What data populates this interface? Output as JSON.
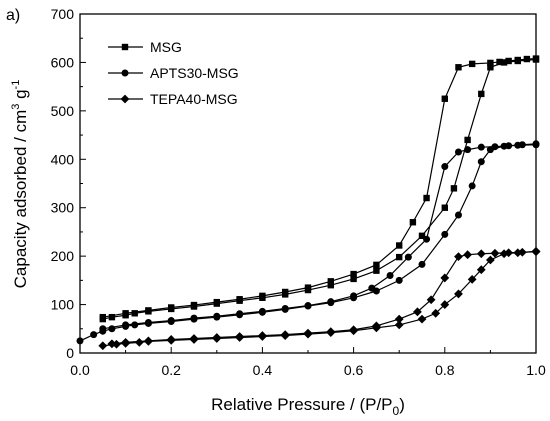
{
  "panel_label": "a)",
  "chart_data": {
    "type": "line",
    "xlabel": "Relative Pressure / (P/P",
    "xlabel_sub": "0",
    "xlabel_close": ")",
    "ylabel": "Capacity adsorbed / cm",
    "ylabel_sup": "3",
    "ylabel_mid": " g",
    "ylabel_sup2": "-1",
    "xlim": [
      0.0,
      1.0
    ],
    "ylim": [
      0,
      700
    ],
    "xticks": [
      "0.0",
      "0.2",
      "0.4",
      "0.6",
      "0.8",
      "1.0"
    ],
    "xtick_values": [
      0.0,
      0.2,
      0.4,
      0.6,
      0.8,
      1.0
    ],
    "yticks": [
      "0",
      "100",
      "200",
      "300",
      "400",
      "500",
      "600",
      "700"
    ],
    "ytick_values": [
      0,
      100,
      200,
      300,
      400,
      500,
      600,
      700
    ],
    "grid": false,
    "legend_position": "top-left",
    "series": [
      {
        "name": "MSG",
        "marker": "square",
        "adsorption": [
          [
            0.05,
            70
          ],
          [
            0.07,
            74
          ],
          [
            0.1,
            78
          ],
          [
            0.12,
            82
          ],
          [
            0.15,
            86
          ],
          [
            0.2,
            91
          ],
          [
            0.25,
            96
          ],
          [
            0.3,
            102
          ],
          [
            0.35,
            108
          ],
          [
            0.4,
            114
          ],
          [
            0.45,
            121
          ],
          [
            0.5,
            130
          ],
          [
            0.55,
            140
          ],
          [
            0.6,
            153
          ],
          [
            0.65,
            170
          ],
          [
            0.7,
            198
          ],
          [
            0.75,
            242
          ],
          [
            0.8,
            300
          ],
          [
            0.82,
            340
          ],
          [
            0.85,
            440
          ],
          [
            0.88,
            535
          ],
          [
            0.9,
            590
          ],
          [
            0.93,
            600
          ],
          [
            0.96,
            603
          ],
          [
            1.0,
            606
          ]
        ],
        "desorption": [
          [
            1.0,
            608
          ],
          [
            0.98,
            607
          ],
          [
            0.96,
            605
          ],
          [
            0.94,
            603
          ],
          [
            0.92,
            601
          ],
          [
            0.9,
            599
          ],
          [
            0.86,
            597
          ],
          [
            0.83,
            590
          ],
          [
            0.8,
            525
          ],
          [
            0.76,
            320
          ],
          [
            0.73,
            270
          ],
          [
            0.7,
            222
          ],
          [
            0.65,
            182
          ],
          [
            0.6,
            163
          ],
          [
            0.55,
            148
          ],
          [
            0.5,
            135
          ],
          [
            0.45,
            126
          ],
          [
            0.4,
            118
          ],
          [
            0.35,
            111
          ],
          [
            0.3,
            105
          ],
          [
            0.25,
            99
          ],
          [
            0.2,
            94
          ],
          [
            0.15,
            88
          ],
          [
            0.1,
            82
          ],
          [
            0.05,
            74
          ]
        ]
      },
      {
        "name": "APTS30-MSG",
        "marker": "circle",
        "adsorption": [
          [
            0.0,
            25
          ],
          [
            0.03,
            38
          ],
          [
            0.05,
            45
          ],
          [
            0.07,
            50
          ],
          [
            0.1,
            55
          ],
          [
            0.12,
            58
          ],
          [
            0.15,
            61
          ],
          [
            0.2,
            65
          ],
          [
            0.25,
            70
          ],
          [
            0.3,
            74
          ],
          [
            0.35,
            79
          ],
          [
            0.4,
            84
          ],
          [
            0.45,
            90
          ],
          [
            0.5,
            97
          ],
          [
            0.55,
            104
          ],
          [
            0.6,
            114
          ],
          [
            0.65,
            128
          ],
          [
            0.7,
            150
          ],
          [
            0.75,
            183
          ],
          [
            0.8,
            245
          ],
          [
            0.83,
            285
          ],
          [
            0.86,
            345
          ],
          [
            0.88,
            395
          ],
          [
            0.9,
            420
          ],
          [
            0.93,
            427
          ],
          [
            0.96,
            429
          ],
          [
            1.0,
            430
          ]
        ],
        "desorption": [
          [
            1.0,
            432
          ],
          [
            0.97,
            430
          ],
          [
            0.94,
            428
          ],
          [
            0.91,
            426
          ],
          [
            0.88,
            425
          ],
          [
            0.85,
            420
          ],
          [
            0.83,
            415
          ],
          [
            0.8,
            385
          ],
          [
            0.76,
            235
          ],
          [
            0.72,
            198
          ],
          [
            0.68,
            160
          ],
          [
            0.64,
            134
          ],
          [
            0.6,
            118
          ],
          [
            0.55,
            106
          ],
          [
            0.5,
            98
          ],
          [
            0.45,
            92
          ],
          [
            0.4,
            86
          ],
          [
            0.35,
            81
          ],
          [
            0.3,
            76
          ],
          [
            0.25,
            72
          ],
          [
            0.2,
            67
          ],
          [
            0.15,
            63
          ],
          [
            0.1,
            58
          ],
          [
            0.05,
            50
          ]
        ]
      },
      {
        "name": "TEPA40-MSG",
        "marker": "diamond",
        "adsorption": [
          [
            0.05,
            15
          ],
          [
            0.08,
            18
          ],
          [
            0.1,
            20
          ],
          [
            0.13,
            22
          ],
          [
            0.15,
            24
          ],
          [
            0.2,
            26
          ],
          [
            0.25,
            28
          ],
          [
            0.3,
            30
          ],
          [
            0.35,
            32
          ],
          [
            0.4,
            34
          ],
          [
            0.45,
            36
          ],
          [
            0.5,
            39
          ],
          [
            0.55,
            42
          ],
          [
            0.6,
            46
          ],
          [
            0.65,
            52
          ],
          [
            0.7,
            58
          ],
          [
            0.75,
            70
          ],
          [
            0.78,
            82
          ],
          [
            0.8,
            100
          ],
          [
            0.83,
            122
          ],
          [
            0.86,
            152
          ],
          [
            0.88,
            172
          ],
          [
            0.9,
            192
          ],
          [
            0.93,
            205
          ],
          [
            0.96,
            207
          ],
          [
            1.0,
            210
          ]
        ],
        "desorption": [
          [
            1.0,
            209
          ],
          [
            0.97,
            208
          ],
          [
            0.94,
            207
          ],
          [
            0.91,
            206
          ],
          [
            0.88,
            205
          ],
          [
            0.85,
            203
          ],
          [
            0.83,
            199
          ],
          [
            0.8,
            155
          ],
          [
            0.77,
            110
          ],
          [
            0.74,
            85
          ],
          [
            0.7,
            70
          ],
          [
            0.65,
            56
          ],
          [
            0.6,
            48
          ],
          [
            0.55,
            44
          ],
          [
            0.5,
            41
          ],
          [
            0.45,
            38
          ],
          [
            0.4,
            36
          ],
          [
            0.35,
            34
          ],
          [
            0.3,
            32
          ],
          [
            0.25,
            30
          ],
          [
            0.2,
            28
          ],
          [
            0.15,
            25
          ],
          [
            0.1,
            22
          ],
          [
            0.07,
            19
          ]
        ]
      }
    ]
  }
}
